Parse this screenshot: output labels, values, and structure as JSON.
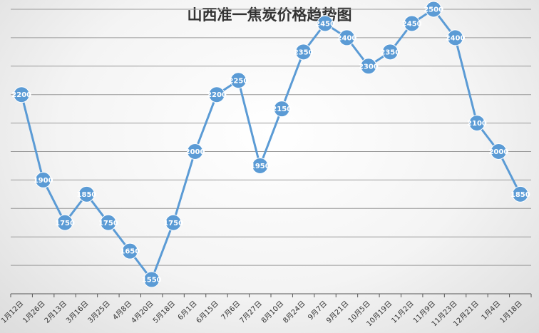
{
  "chart_data": {
    "type": "line",
    "title": "山西准一焦炭价格趋势图",
    "xlabel": "",
    "ylabel": "",
    "categories": [
      "1月12日",
      "1月26日",
      "2月13日",
      "3月16日",
      "3月25日",
      "4月8日",
      "4月20日",
      "5月18日",
      "6月1日",
      "6月15日",
      "7月6日",
      "7月27日",
      "8月10日",
      "8月24日",
      "9月7日",
      "9月21日",
      "10月5日",
      "10月19日",
      "11月2日",
      "11月9日",
      "11月23日",
      "12月21日",
      "1月4日",
      "1月18日"
    ],
    "series": [
      {
        "values": [
          2200,
          1900,
          1750,
          1850,
          1750,
          1650,
          1550,
          1750,
          2000,
          2200,
          2250,
          1950,
          2150,
          2350,
          2450,
          2400,
          2300,
          2350,
          2450,
          2500,
          2400,
          2100,
          2000,
          1850
        ]
      }
    ],
    "ylim": [
      1500,
      2500
    ],
    "y_gridlines": [
      1500,
      1600,
      1700,
      1800,
      1900,
      2000,
      2100,
      2200,
      2300,
      2400,
      2500
    ],
    "y_tick_labels_shown": false,
    "grid": true,
    "data_labels": true,
    "colors": {
      "line": "#5b9bd5",
      "marker": "#5b9bd5",
      "label_text": "#ffffff",
      "grid": "#9a9a9a"
    }
  }
}
